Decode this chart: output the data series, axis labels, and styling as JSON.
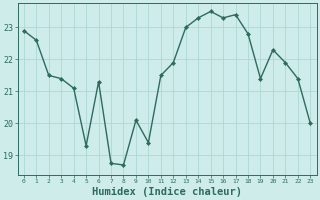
{
  "x": [
    0,
    1,
    2,
    3,
    4,
    5,
    6,
    7,
    8,
    9,
    10,
    11,
    12,
    13,
    14,
    15,
    16,
    17,
    18,
    19,
    20,
    21,
    22,
    23
  ],
  "y": [
    22.9,
    22.6,
    21.5,
    21.4,
    21.1,
    19.3,
    21.3,
    18.75,
    18.7,
    20.1,
    19.4,
    21.5,
    21.9,
    23.0,
    23.3,
    23.5,
    23.3,
    23.4,
    22.8,
    21.4,
    22.3,
    21.9,
    21.4,
    20.0
  ],
  "line_color": "#2d6b5e",
  "marker": "D",
  "markersize": 2.2,
  "linewidth": 1.0,
  "bg_color": "#ceecea",
  "grid_color": "#add8d4",
  "tick_color": "#2d6b5e",
  "xlabel": "Humidex (Indice chaleur)",
  "xlabel_fontsize": 7.5,
  "ylabel_ticks": [
    19,
    20,
    21,
    22,
    23
  ],
  "xlim": [
    -0.5,
    23.5
  ],
  "ylim": [
    18.4,
    23.75
  ],
  "title": ""
}
